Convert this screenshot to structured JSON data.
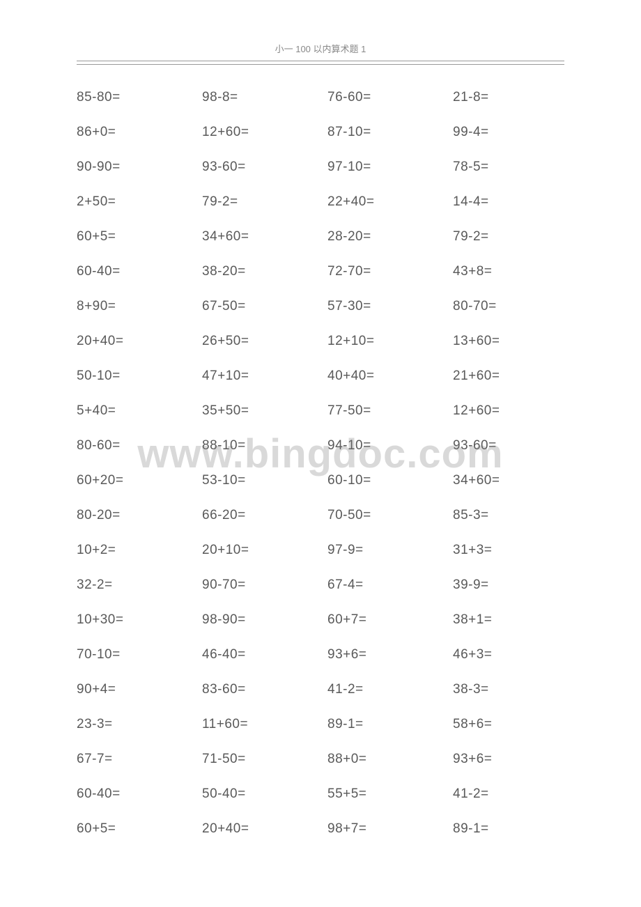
{
  "header": {
    "title": "小一 100 以内算术题 1"
  },
  "watermark": {
    "text": "www.bingdoc.com"
  },
  "problems": {
    "rows": [
      [
        "85-80=",
        "98-8=",
        "76-60=",
        "21-8="
      ],
      [
        "86+0=",
        "12+60=",
        "87-10=",
        "99-4="
      ],
      [
        "90-90=",
        "93-60=",
        "97-10=",
        "78-5="
      ],
      [
        "2+50=",
        "79-2=",
        "22+40=",
        "14-4="
      ],
      [
        "60+5=",
        "34+60=",
        "28-20=",
        "79-2="
      ],
      [
        "60-40=",
        "38-20=",
        "72-70=",
        "43+8="
      ],
      [
        "8+90=",
        "67-50=",
        "57-30=",
        "80-70="
      ],
      [
        "20+40=",
        "26+50=",
        "12+10=",
        "13+60="
      ],
      [
        "50-10=",
        "47+10=",
        "40+40=",
        "21+60="
      ],
      [
        "5+40=",
        "35+50=",
        "77-50=",
        "12+60="
      ],
      [
        "80-60=",
        "88-10=",
        "94-10=",
        "93-60="
      ],
      [
        "60+20=",
        "53-10=",
        "60-10=",
        "34+60="
      ],
      [
        "80-20=",
        "66-20=",
        "70-50=",
        "85-3="
      ],
      [
        "10+2=",
        "20+10=",
        "97-9=",
        "31+3="
      ],
      [
        "32-2=",
        "90-70=",
        "67-4=",
        "39-9="
      ],
      [
        "10+30=",
        "98-90=",
        "60+7=",
        "38+1="
      ],
      [
        "70-10=",
        "46-40=",
        "93+6=",
        "46+3="
      ],
      [
        "90+4=",
        "83-60=",
        "41-2=",
        "38-3="
      ],
      [
        "23-3=",
        "11+60=",
        "89-1=",
        "58+6="
      ],
      [
        "67-7=",
        "71-50=",
        "88+0=",
        "93+6="
      ],
      [
        "60-40=",
        "50-40=",
        "55+5=",
        "41-2="
      ],
      [
        "60+5=",
        "20+40=",
        "98+7=",
        "89-1="
      ]
    ]
  }
}
